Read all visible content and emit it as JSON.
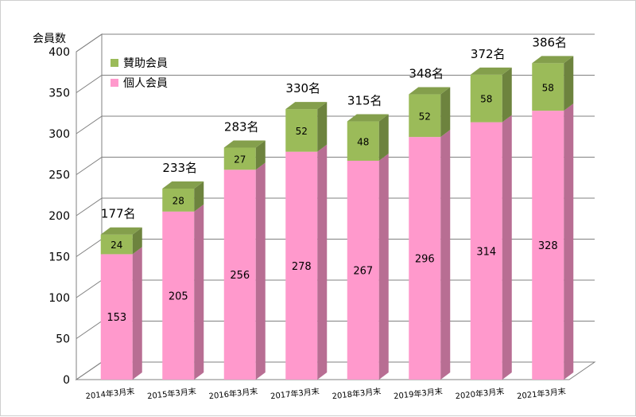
{
  "chart_data": {
    "type": "bar",
    "stacked": true,
    "three_d": true,
    "ylabel": "会員数",
    "ylim": [
      0,
      400
    ],
    "yticks": [
      0,
      50,
      100,
      150,
      200,
      250,
      300,
      350,
      400
    ],
    "grid": true,
    "legend_position": "top-left",
    "categories": [
      "2014年3月末",
      "2015年3月末",
      "2016年3月末",
      "2017年3月末",
      "2018年3月末",
      "2019年3月末",
      "2020年3月末",
      "2021年3月末"
    ],
    "series": [
      {
        "name": "個人会員",
        "color": "#ff99cc",
        "values": [
          153,
          205,
          256,
          278,
          267,
          296,
          314,
          328
        ]
      },
      {
        "name": "賛助会員",
        "color": "#9bbb59",
        "values": [
          24,
          28,
          27,
          52,
          48,
          52,
          58,
          58
        ]
      }
    ],
    "totals": [
      "177名",
      "233名",
      "283名",
      "330名",
      "315名",
      "348名",
      "372名",
      "386名"
    ]
  }
}
